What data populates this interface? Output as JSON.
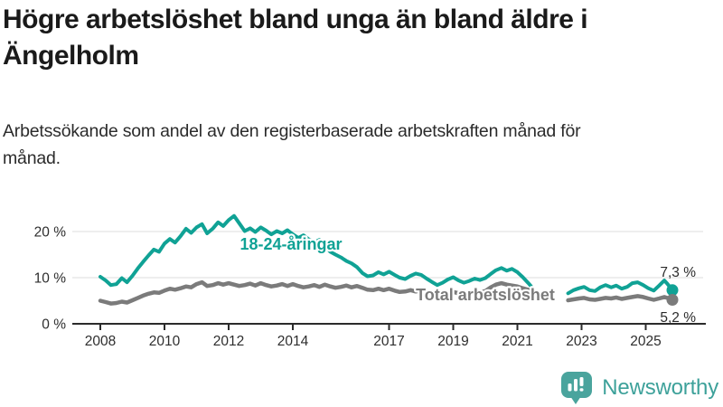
{
  "title": "Högre arbetslöshet bland unga än bland äldre i Ängelholm",
  "subtitle": "Arbetssökande som andel av den registerbaserade arbetskraften månad för månad.",
  "branding": {
    "logo_text": "Newsworthy",
    "logo_icon": "bar-chart-speech-bubble-icon",
    "logo_color": "#4aa49d"
  },
  "chart_data": {
    "type": "line",
    "unit": "%",
    "grid": "horizontal-only",
    "legend_position": "inline-labels-on-lines",
    "data_gap": "no data between mid-2021 and mid-2022",
    "x_axis": {
      "tick_years": [
        2008,
        2010,
        2012,
        2014,
        2017,
        2019,
        2021,
        2023,
        2025
      ],
      "range": [
        2008,
        2025.9
      ]
    },
    "y_axis": {
      "labels": [
        {
          "text": "0 %",
          "value": 0
        },
        {
          "text": "10 %",
          "value": 10
        },
        {
          "text": "20 %",
          "value": 20
        }
      ],
      "gridlines": [
        10,
        20
      ],
      "range": [
        0,
        24
      ]
    },
    "series": [
      {
        "name": "18-24-åringar",
        "color": "#10a295",
        "end_label": "7,3 %",
        "end_value": 7.3,
        "segments": [
          [
            [
              2008.0,
              10.2
            ],
            [
              2008.17,
              9.4
            ],
            [
              2008.33,
              8.4
            ],
            [
              2008.5,
              8.6
            ],
            [
              2008.67,
              9.9
            ],
            [
              2008.83,
              9.0
            ],
            [
              2009.0,
              10.4
            ],
            [
              2009.17,
              12.0
            ],
            [
              2009.33,
              13.4
            ],
            [
              2009.5,
              14.8
            ],
            [
              2009.67,
              16.1
            ],
            [
              2009.83,
              15.6
            ],
            [
              2010.0,
              17.4
            ],
            [
              2010.17,
              18.4
            ],
            [
              2010.33,
              17.6
            ],
            [
              2010.5,
              19.0
            ],
            [
              2010.67,
              20.6
            ],
            [
              2010.83,
              19.7
            ],
            [
              2011.0,
              20.9
            ],
            [
              2011.17,
              21.6
            ],
            [
              2011.33,
              19.6
            ],
            [
              2011.5,
              20.6
            ],
            [
              2011.67,
              22.0
            ],
            [
              2011.83,
              21.2
            ],
            [
              2012.0,
              22.5
            ],
            [
              2012.17,
              23.4
            ],
            [
              2012.33,
              21.8
            ],
            [
              2012.5,
              20.1
            ],
            [
              2012.67,
              20.7
            ],
            [
              2012.83,
              19.9
            ],
            [
              2013.0,
              20.9
            ],
            [
              2013.17,
              20.2
            ],
            [
              2013.33,
              19.4
            ],
            [
              2013.5,
              20.1
            ],
            [
              2013.67,
              19.6
            ],
            [
              2013.83,
              20.3
            ],
            [
              2014.0,
              19.4
            ],
            [
              2014.17,
              18.6
            ],
            [
              2014.33,
              19.2
            ],
            [
              2014.5,
              18.3
            ],
            [
              2014.67,
              17.6
            ],
            [
              2014.83,
              18.2
            ],
            [
              2015.0,
              17.0
            ],
            [
              2015.17,
              15.6
            ],
            [
              2015.33,
              15.0
            ],
            [
              2015.5,
              14.4
            ],
            [
              2015.67,
              13.6
            ],
            [
              2015.83,
              13.1
            ],
            [
              2016.0,
              12.3
            ],
            [
              2016.17,
              11.0
            ],
            [
              2016.33,
              10.3
            ],
            [
              2016.5,
              10.5
            ],
            [
              2016.67,
              11.2
            ],
            [
              2016.83,
              10.7
            ],
            [
              2017.0,
              11.3
            ],
            [
              2017.17,
              10.6
            ],
            [
              2017.33,
              10.0
            ],
            [
              2017.5,
              9.7
            ],
            [
              2017.67,
              10.4
            ],
            [
              2017.83,
              10.9
            ],
            [
              2018.0,
              10.6
            ],
            [
              2018.17,
              9.8
            ],
            [
              2018.33,
              9.1
            ],
            [
              2018.5,
              8.4
            ],
            [
              2018.67,
              8.9
            ],
            [
              2018.83,
              9.6
            ],
            [
              2019.0,
              10.1
            ],
            [
              2019.17,
              9.4
            ],
            [
              2019.33,
              8.9
            ],
            [
              2019.5,
              9.3
            ],
            [
              2019.67,
              9.8
            ],
            [
              2019.83,
              9.5
            ],
            [
              2020.0,
              9.9
            ],
            [
              2020.17,
              10.8
            ],
            [
              2020.33,
              11.6
            ],
            [
              2020.5,
              12.1
            ],
            [
              2020.67,
              11.5
            ],
            [
              2020.83,
              11.9
            ],
            [
              2021.0,
              11.2
            ],
            [
              2021.17,
              10.1
            ],
            [
              2021.33,
              8.9
            ],
            [
              2021.42,
              8.2
            ]
          ],
          [
            [
              2022.58,
              6.6
            ],
            [
              2022.75,
              7.3
            ],
            [
              2022.92,
              7.7
            ],
            [
              2023.08,
              8.0
            ],
            [
              2023.25,
              7.3
            ],
            [
              2023.42,
              7.1
            ],
            [
              2023.58,
              7.9
            ],
            [
              2023.75,
              8.4
            ],
            [
              2023.92,
              7.9
            ],
            [
              2024.08,
              8.3
            ],
            [
              2024.25,
              7.6
            ],
            [
              2024.42,
              8.0
            ],
            [
              2024.58,
              8.8
            ],
            [
              2024.75,
              9.0
            ],
            [
              2024.92,
              8.4
            ],
            [
              2025.08,
              7.7
            ],
            [
              2025.25,
              7.2
            ],
            [
              2025.42,
              8.3
            ],
            [
              2025.58,
              9.4
            ],
            [
              2025.67,
              8.7
            ],
            [
              2025.83,
              7.3
            ]
          ]
        ]
      },
      {
        "name": "Total arbetslöshet",
        "color": "#7b7b7b",
        "end_label": "5,2 %",
        "end_value": 5.2,
        "segments": [
          [
            [
              2008.0,
              5.0
            ],
            [
              2008.17,
              4.7
            ],
            [
              2008.33,
              4.4
            ],
            [
              2008.5,
              4.5
            ],
            [
              2008.67,
              4.8
            ],
            [
              2008.83,
              4.6
            ],
            [
              2009.0,
              5.1
            ],
            [
              2009.17,
              5.6
            ],
            [
              2009.33,
              6.1
            ],
            [
              2009.5,
              6.5
            ],
            [
              2009.67,
              6.8
            ],
            [
              2009.83,
              6.7
            ],
            [
              2010.0,
              7.2
            ],
            [
              2010.17,
              7.6
            ],
            [
              2010.33,
              7.4
            ],
            [
              2010.5,
              7.7
            ],
            [
              2010.67,
              8.1
            ],
            [
              2010.83,
              7.9
            ],
            [
              2011.0,
              8.6
            ],
            [
              2011.17,
              9.0
            ],
            [
              2011.33,
              8.2
            ],
            [
              2011.5,
              8.4
            ],
            [
              2011.67,
              8.8
            ],
            [
              2011.83,
              8.5
            ],
            [
              2012.0,
              8.8
            ],
            [
              2012.17,
              8.5
            ],
            [
              2012.33,
              8.2
            ],
            [
              2012.5,
              8.4
            ],
            [
              2012.67,
              8.7
            ],
            [
              2012.83,
              8.3
            ],
            [
              2013.0,
              8.8
            ],
            [
              2013.17,
              8.4
            ],
            [
              2013.33,
              8.1
            ],
            [
              2013.5,
              8.3
            ],
            [
              2013.67,
              8.6
            ],
            [
              2013.83,
              8.2
            ],
            [
              2014.0,
              8.6
            ],
            [
              2014.17,
              8.2
            ],
            [
              2014.33,
              7.9
            ],
            [
              2014.5,
              8.1
            ],
            [
              2014.67,
              8.4
            ],
            [
              2014.83,
              8.0
            ],
            [
              2015.0,
              8.5
            ],
            [
              2015.17,
              8.1
            ],
            [
              2015.33,
              7.8
            ],
            [
              2015.5,
              8.0
            ],
            [
              2015.67,
              8.3
            ],
            [
              2015.83,
              7.9
            ],
            [
              2016.0,
              8.2
            ],
            [
              2016.17,
              7.8
            ],
            [
              2016.33,
              7.4
            ],
            [
              2016.5,
              7.3
            ],
            [
              2016.67,
              7.6
            ],
            [
              2016.83,
              7.3
            ],
            [
              2017.0,
              7.6
            ],
            [
              2017.17,
              7.2
            ],
            [
              2017.33,
              6.9
            ],
            [
              2017.5,
              7.0
            ],
            [
              2017.67,
              7.3
            ],
            [
              2017.83,
              7.0
            ],
            [
              2018.0,
              7.2
            ],
            [
              2018.17,
              6.8
            ],
            [
              2018.33,
              6.5
            ],
            [
              2018.5,
              6.4
            ],
            [
              2018.67,
              6.7
            ],
            [
              2018.83,
              6.5
            ],
            [
              2019.0,
              6.9
            ],
            [
              2019.17,
              6.6
            ],
            [
              2019.33,
              6.5
            ],
            [
              2019.5,
              6.7
            ],
            [
              2019.67,
              6.9
            ],
            [
              2019.83,
              6.8
            ],
            [
              2020.0,
              7.1
            ],
            [
              2020.17,
              7.9
            ],
            [
              2020.33,
              8.5
            ],
            [
              2020.5,
              8.8
            ],
            [
              2020.67,
              8.5
            ],
            [
              2020.83,
              8.3
            ],
            [
              2021.0,
              8.1
            ],
            [
              2021.17,
              7.7
            ],
            [
              2021.33,
              7.4
            ],
            [
              2021.42,
              7.2
            ]
          ],
          [
            [
              2022.58,
              5.1
            ],
            [
              2022.75,
              5.3
            ],
            [
              2022.92,
              5.5
            ],
            [
              2023.08,
              5.6
            ],
            [
              2023.25,
              5.3
            ],
            [
              2023.42,
              5.2
            ],
            [
              2023.58,
              5.4
            ],
            [
              2023.75,
              5.6
            ],
            [
              2023.92,
              5.5
            ],
            [
              2024.08,
              5.7
            ],
            [
              2024.25,
              5.4
            ],
            [
              2024.42,
              5.6
            ],
            [
              2024.58,
              5.8
            ],
            [
              2024.75,
              6.0
            ],
            [
              2024.92,
              5.8
            ],
            [
              2025.08,
              5.5
            ],
            [
              2025.25,
              5.2
            ],
            [
              2025.42,
              5.5
            ],
            [
              2025.58,
              5.8
            ],
            [
              2025.67,
              5.6
            ],
            [
              2025.83,
              5.2
            ]
          ]
        ]
      }
    ]
  }
}
